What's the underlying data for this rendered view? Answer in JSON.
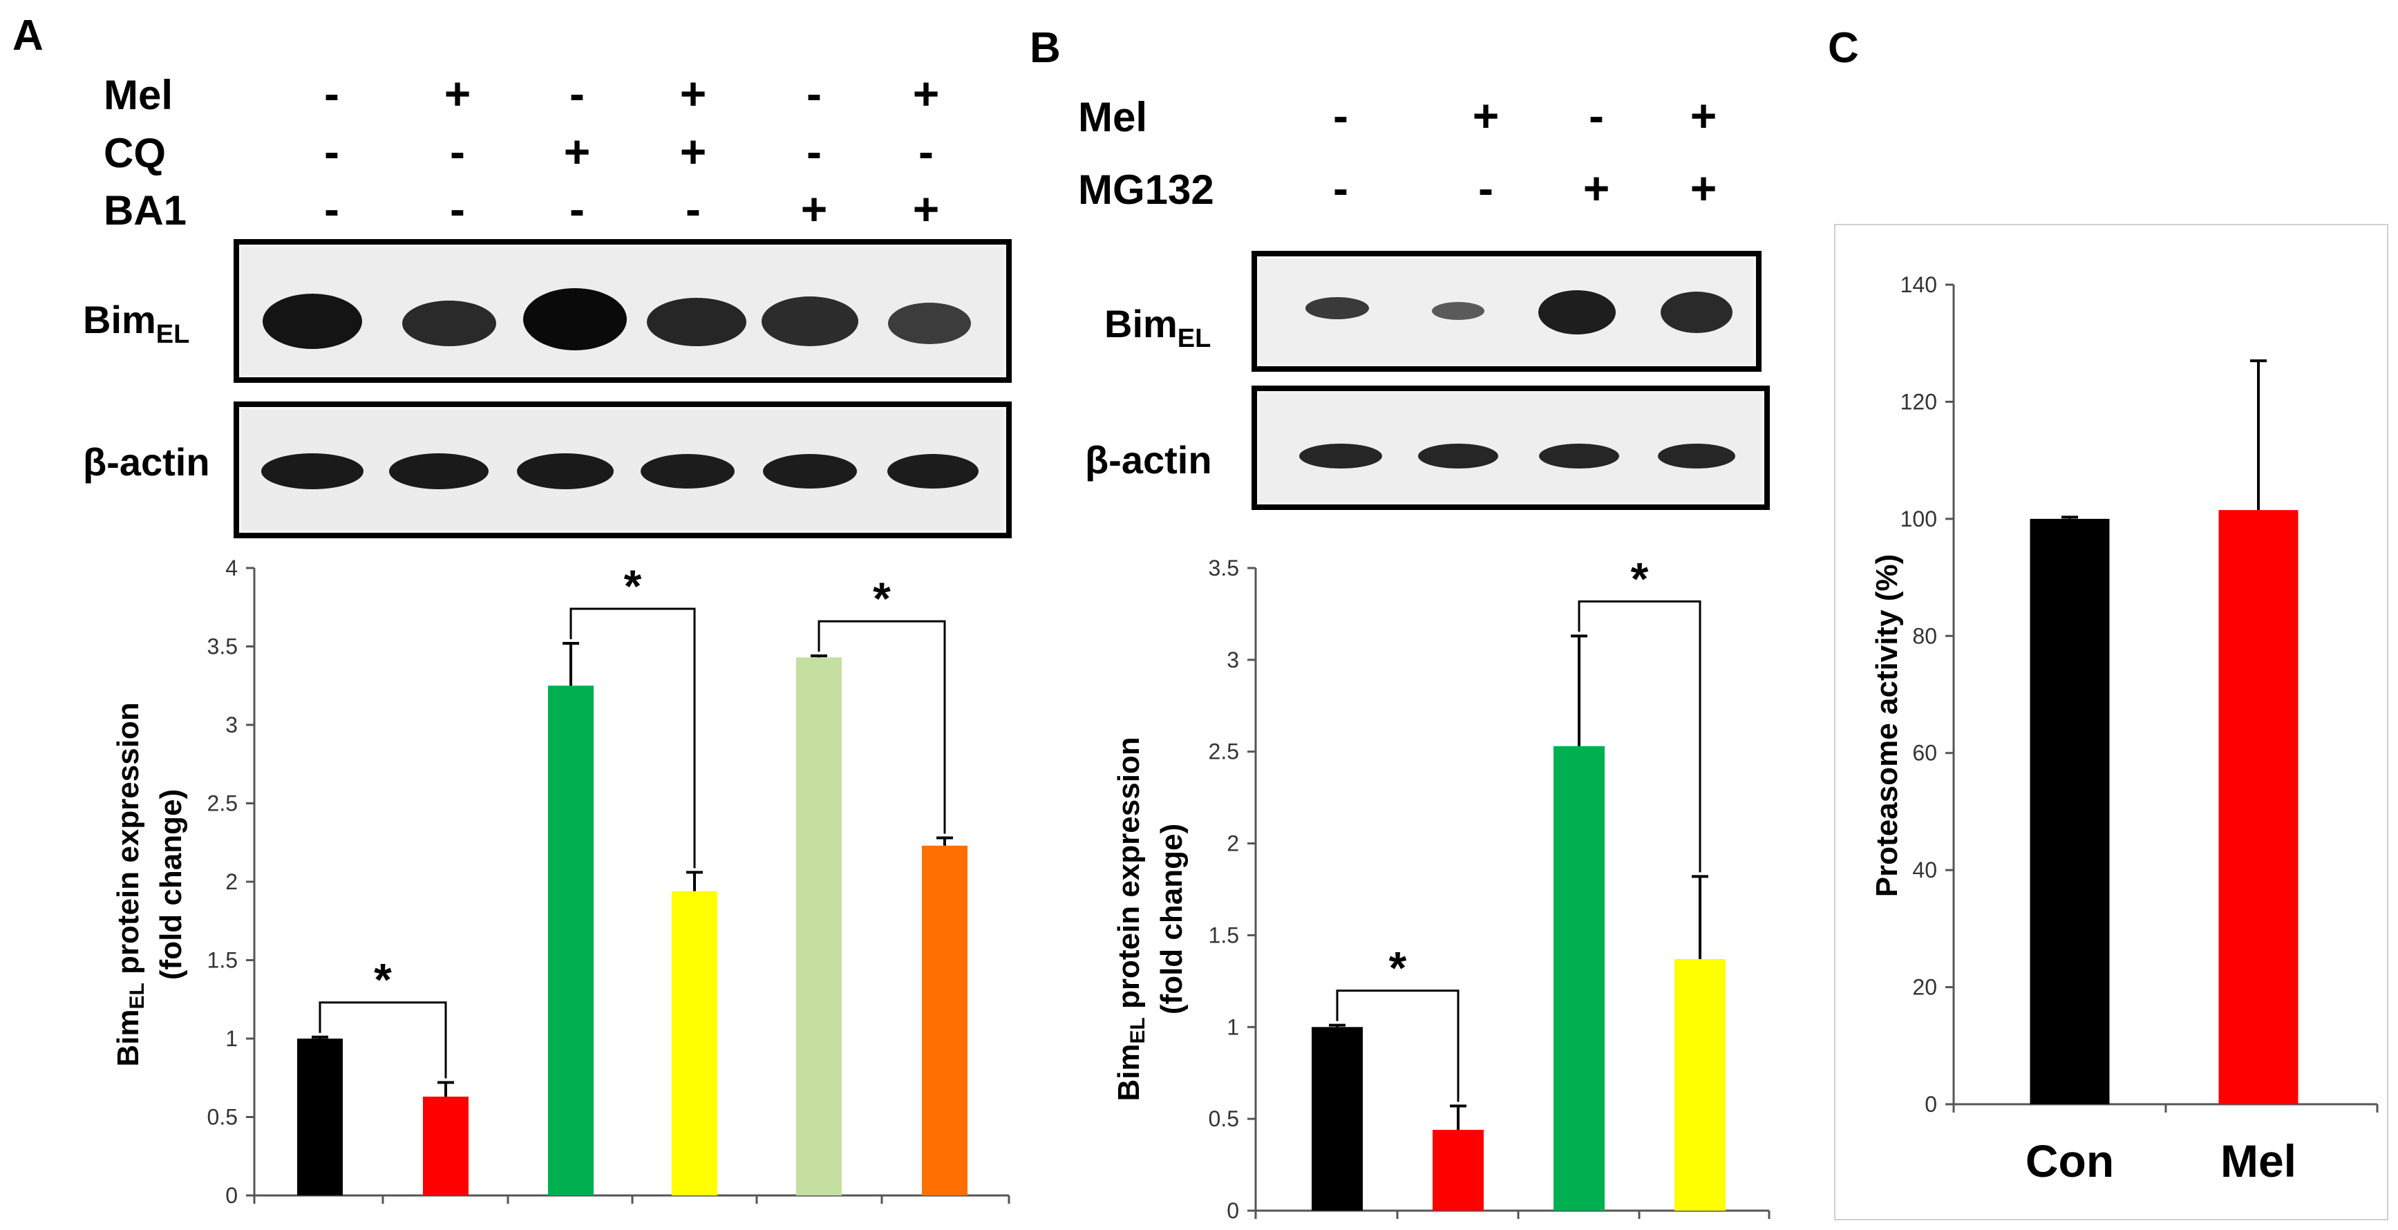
{
  "panels": {
    "a": {
      "letter": "A",
      "treatments": [
        {
          "name": "Mel",
          "signs": [
            "-",
            "+",
            "-",
            "+",
            "-",
            "+"
          ]
        },
        {
          "name": "CQ",
          "signs": [
            "-",
            "-",
            "+",
            "+",
            "-",
            "-"
          ]
        },
        {
          "name": "BA1",
          "signs": [
            "-",
            "-",
            "-",
            "-",
            "+",
            "+"
          ]
        }
      ],
      "blots": {
        "bim_base": "Bim",
        "bim_sub": "EL",
        "actin": "β-actin"
      },
      "ylabel_line1": "Bim",
      "ylabel_sub": "EL",
      "ylabel_line1_rest": " protein expression",
      "ylabel_line2": "(fold   change)",
      "significance": "*"
    },
    "b": {
      "letter": "B",
      "treatments": [
        {
          "name": "Mel",
          "signs": [
            "-",
            "+",
            "-",
            "+"
          ]
        },
        {
          "name": "MG132",
          "signs": [
            "-",
            "-",
            "+",
            "+"
          ]
        }
      ],
      "blots": {
        "bim_base": "Bim",
        "bim_sub": "EL",
        "actin": "β-actin"
      },
      "ylabel_line1": "Bim",
      "ylabel_sub": "EL",
      "ylabel_line1_rest": " protein expression",
      "ylabel_line2": "(fold   change)",
      "significance": "*"
    },
    "c": {
      "letter": "C",
      "ylabel": "Proteasome activity (%)"
    }
  },
  "chart_data": [
    {
      "type": "bar",
      "panel": "A",
      "ylabel": "BimEL protein expression (fold change)",
      "ylim": [
        0,
        4
      ],
      "yticks": [
        "0",
        "0.5",
        "1",
        "1.5",
        "2",
        "2.5",
        "3",
        "3.5",
        "4"
      ],
      "values": [
        1.0,
        0.63,
        3.25,
        1.94,
        3.43,
        2.23
      ],
      "errors": [
        0.01,
        0.09,
        0.27,
        0.12,
        0.01,
        0.05
      ],
      "colors": [
        "#000000",
        "#ff0000",
        "#00b050",
        "#ffff00",
        "#c4dfa0",
        "#ff7000"
      ],
      "significance": [
        [
          0,
          1
        ],
        [
          2,
          3
        ],
        [
          4,
          5
        ]
      ],
      "grid": false
    },
    {
      "type": "bar",
      "panel": "B",
      "ylabel": "BimEL protein expression (fold change)",
      "ylim": [
        0,
        3.5
      ],
      "yticks": [
        "0",
        "0.5",
        "1",
        "1.5",
        "2",
        "2.5",
        "3",
        "3.5"
      ],
      "values": [
        1.0,
        0.44,
        2.53,
        1.37
      ],
      "errors": [
        0.01,
        0.13,
        0.6,
        0.45
      ],
      "colors": [
        "#000000",
        "#ff0000",
        "#00b050",
        "#ffff00"
      ],
      "significance": [
        [
          0,
          1
        ],
        [
          2,
          3
        ]
      ],
      "grid": false
    },
    {
      "type": "bar",
      "panel": "C",
      "categories": [
        "Con",
        "Mel"
      ],
      "ylabel": "Proteasome activity (%)",
      "ylim": [
        0,
        140
      ],
      "yticks": [
        "0",
        "20",
        "40",
        "60",
        "80",
        "100",
        "120",
        "140"
      ],
      "values": [
        100,
        101.5
      ],
      "errors": [
        0.3,
        25.5
      ],
      "colors": [
        "#000000",
        "#ff0000"
      ],
      "grid": false
    }
  ]
}
